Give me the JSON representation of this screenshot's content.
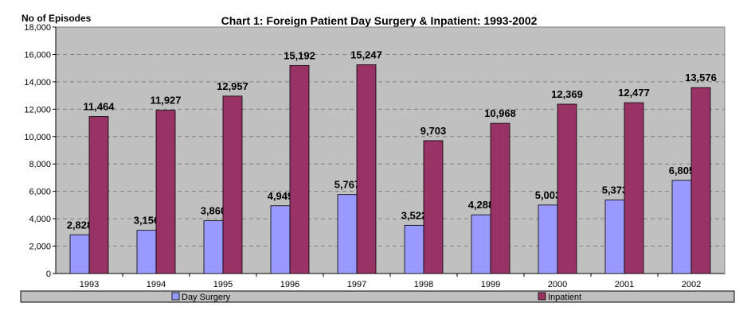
{
  "chart_data": {
    "type": "bar",
    "title": "Chart 1: Foreign Patient Day Surgery & Inpatient: 1993-2002",
    "ylabel": "No of Episodes",
    "xlabel": "",
    "categories": [
      "1993",
      "1994",
      "1995",
      "1996",
      "1997",
      "1998",
      "1999",
      "2000",
      "2001",
      "2002"
    ],
    "ylim": [
      0,
      18000
    ],
    "yticks": [
      "0",
      "2,000",
      "4,000",
      "6,000",
      "8,000",
      "10,000",
      "12,000",
      "14,000",
      "16,000",
      "18,000"
    ],
    "grid": true,
    "legend": "bottom",
    "series": [
      {
        "name": "Day Surgery",
        "color": "#9999ff",
        "values": [
          2828,
          3156,
          3860,
          4949,
          5767,
          3522,
          4288,
          5003,
          5373,
          6805
        ],
        "labels": [
          "2,828",
          "3,156",
          "3,860",
          "4,949",
          "5,767",
          "3,522",
          "4,288",
          "5,003",
          "5,373",
          "6,805"
        ]
      },
      {
        "name": "Inpatient",
        "color": "#993366",
        "values": [
          11464,
          11927,
          12957,
          15192,
          15247,
          9703,
          10968,
          12369,
          12477,
          13576
        ],
        "labels": [
          "11,464",
          "11,927",
          "12,957",
          "15,192",
          "15,247",
          "9,703",
          "10,968",
          "12,369",
          "12,477",
          "13,576"
        ]
      }
    ],
    "plot_background": "#c0c0c0"
  }
}
